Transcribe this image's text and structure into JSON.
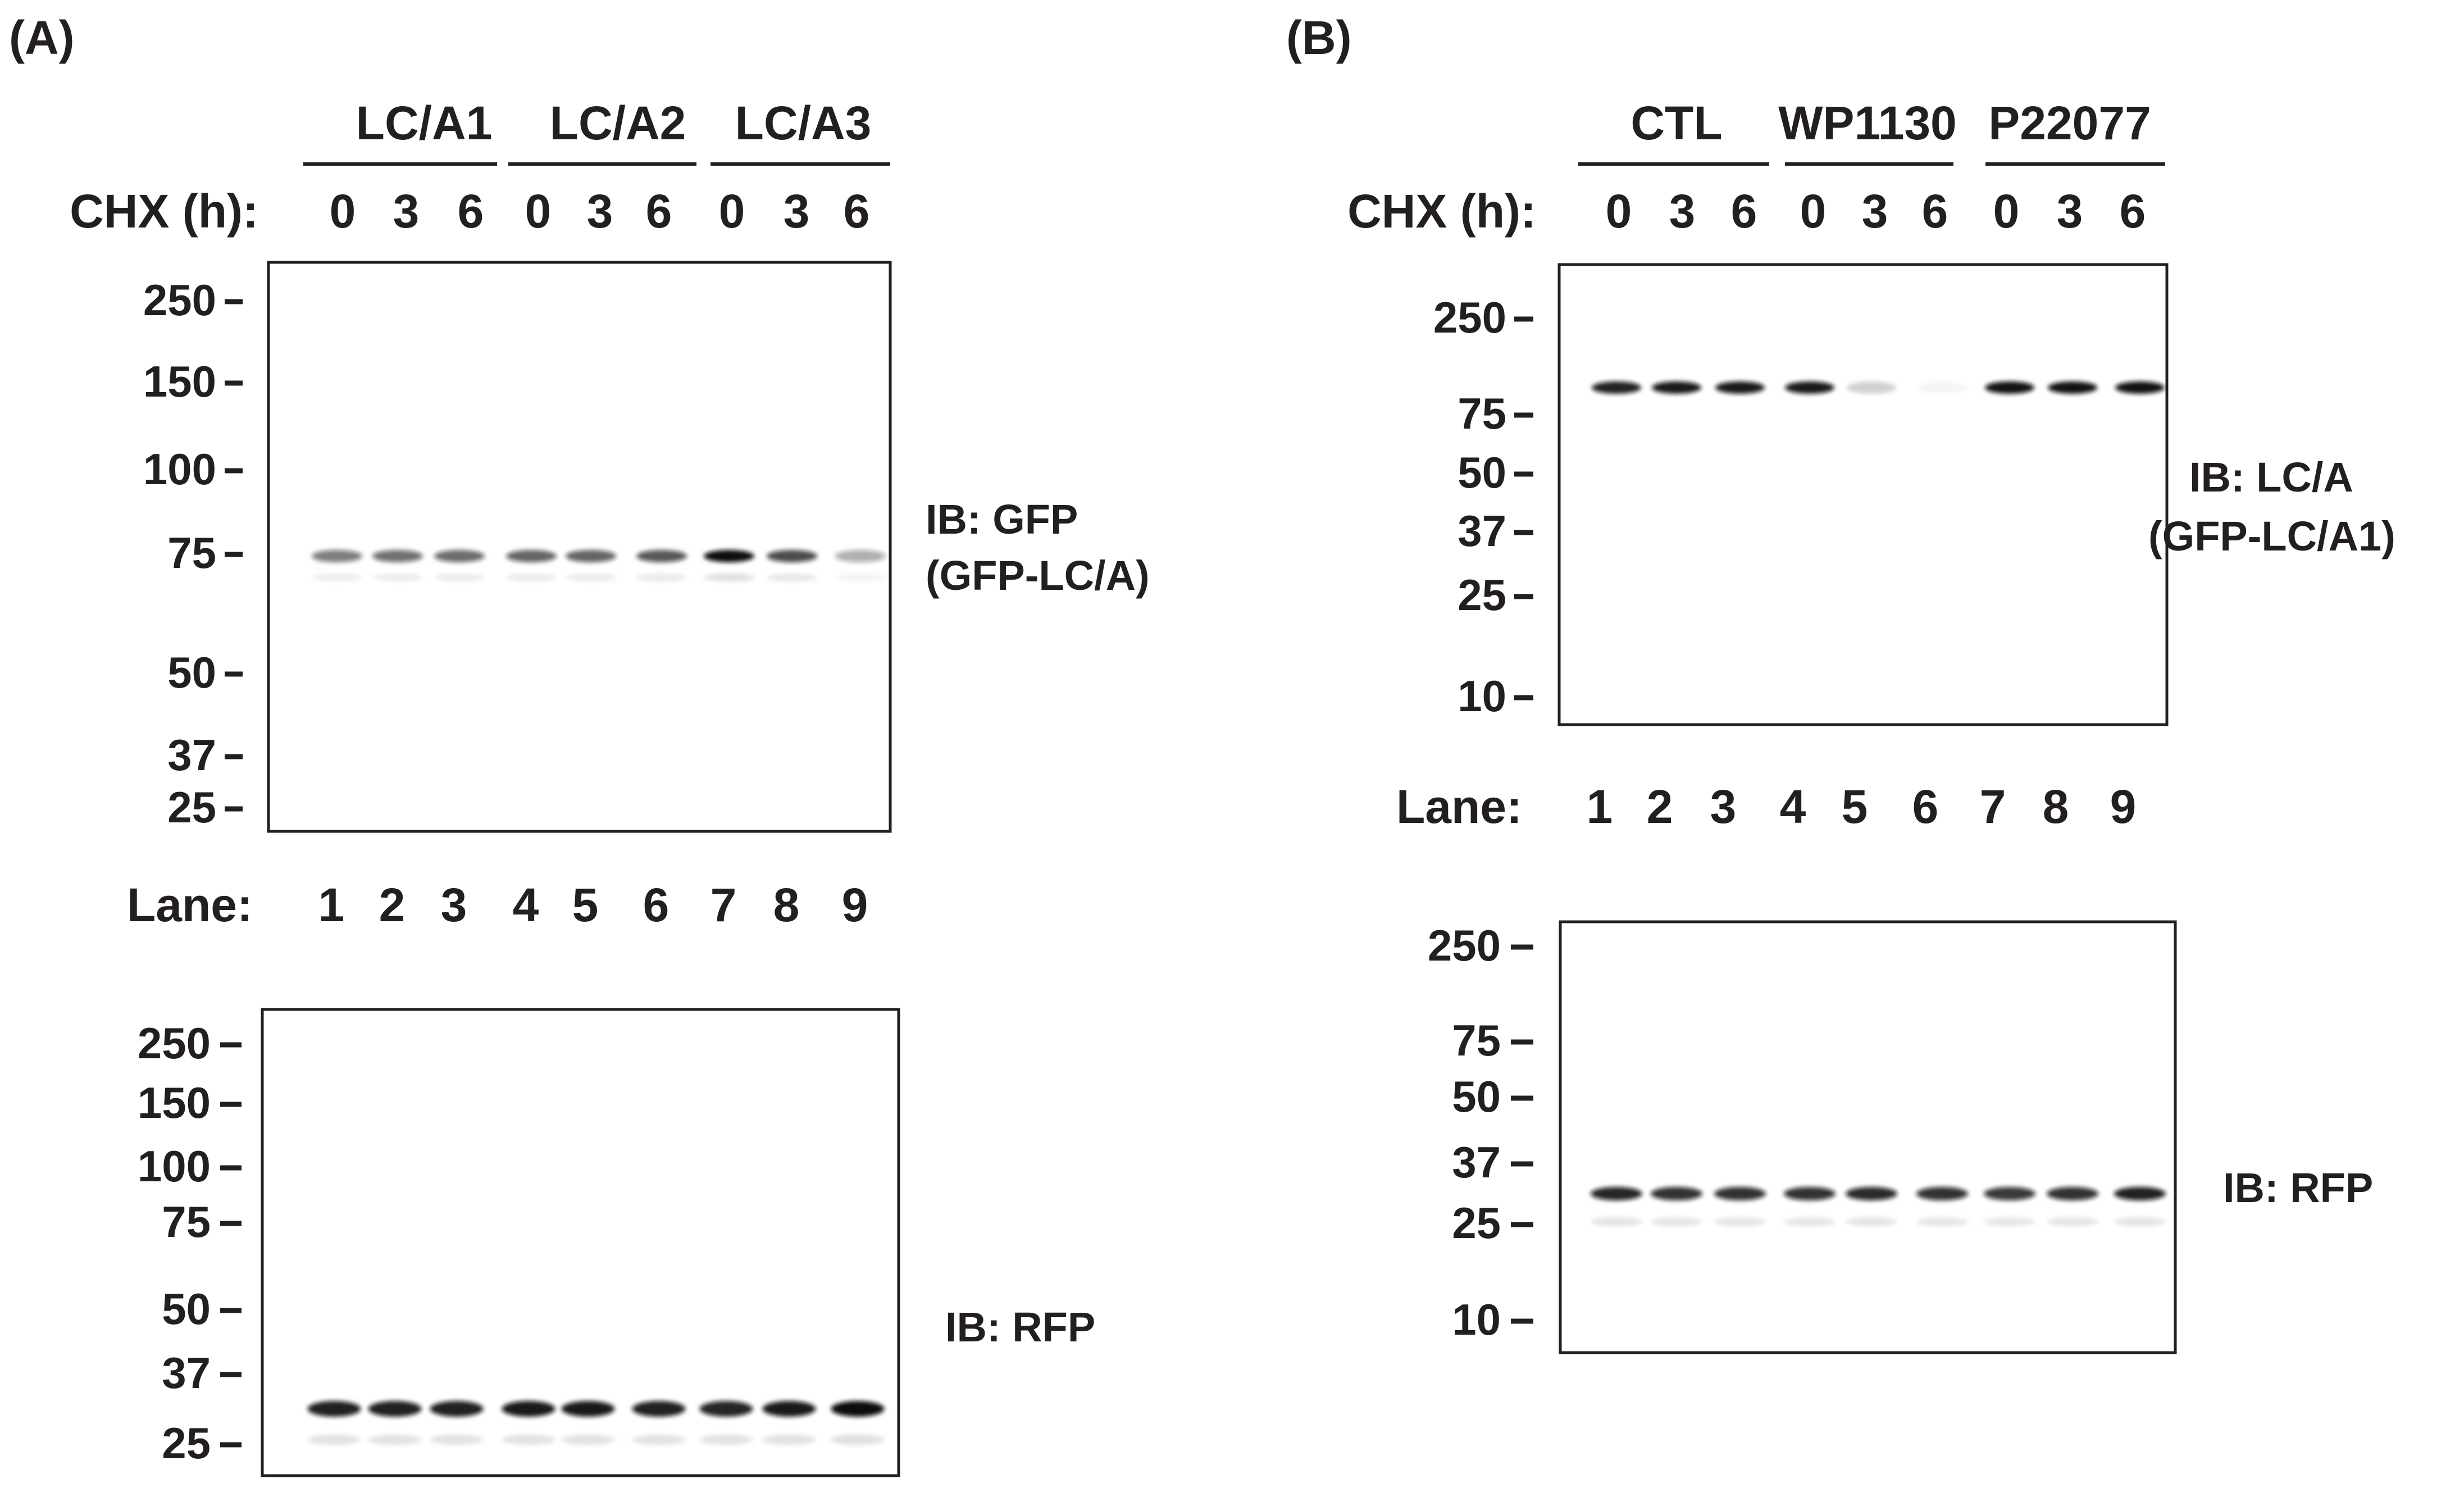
{
  "panels": [
    {
      "id": "A",
      "letter": "(A)",
      "groups": [
        "LC/A1",
        "LC/A2",
        "LC/A3"
      ],
      "chx_label": "CHX (h):",
      "chx_times": [
        "0",
        "3",
        "6",
        "0",
        "3",
        "6",
        "0",
        "3",
        "6"
      ],
      "lane_label": "Lane:",
      "lanes": [
        "1",
        "2",
        "3",
        "4",
        "5",
        "6",
        "7",
        "8",
        "9"
      ],
      "blots": [
        {
          "ib_lines": [
            "IB: GFP",
            "(GFP-LC/A)"
          ],
          "markers": [
            "250",
            "150",
            "100",
            "75",
            "50",
            "37",
            "25"
          ],
          "band_intensities": [
            0.55,
            0.6,
            0.62,
            0.65,
            0.65,
            0.7,
            1.0,
            0.75,
            0.35
          ]
        },
        {
          "ib_lines": [
            "IB: RFP"
          ],
          "markers": [
            "250",
            "150",
            "100",
            "75",
            "50",
            "37",
            "25"
          ],
          "band_intensities": [
            0.92,
            0.92,
            0.92,
            0.95,
            0.95,
            0.92,
            0.9,
            0.95,
            1.0
          ]
        }
      ]
    },
    {
      "id": "B",
      "letter": "(B)",
      "groups": [
        "CTL",
        "WP1130",
        "P22077"
      ],
      "chx_label": "CHX (h):",
      "chx_times": [
        "0",
        "3",
        "6",
        "0",
        "3",
        "6",
        "0",
        "3",
        "6"
      ],
      "lane_label": "Lane:",
      "lanes": [
        "1",
        "2",
        "3",
        "4",
        "5",
        "6",
        "7",
        "8",
        "9"
      ],
      "blots": [
        {
          "ib_lines": [
            "IB: LC/A",
            "(GFP-LC/A1)"
          ],
          "markers": [
            "250",
            "75",
            "50",
            "37",
            "25",
            "10"
          ],
          "band_intensities": [
            0.92,
            0.95,
            0.95,
            0.95,
            0.18,
            0.03,
            0.98,
            0.98,
            0.98
          ]
        },
        {
          "ib_lines": [
            "IB: RFP"
          ],
          "markers": [
            "250",
            "75",
            "50",
            "37",
            "25",
            "10"
          ],
          "band_intensities": [
            0.9,
            0.85,
            0.85,
            0.85,
            0.88,
            0.85,
            0.82,
            0.85,
            0.92
          ]
        }
      ]
    }
  ]
}
